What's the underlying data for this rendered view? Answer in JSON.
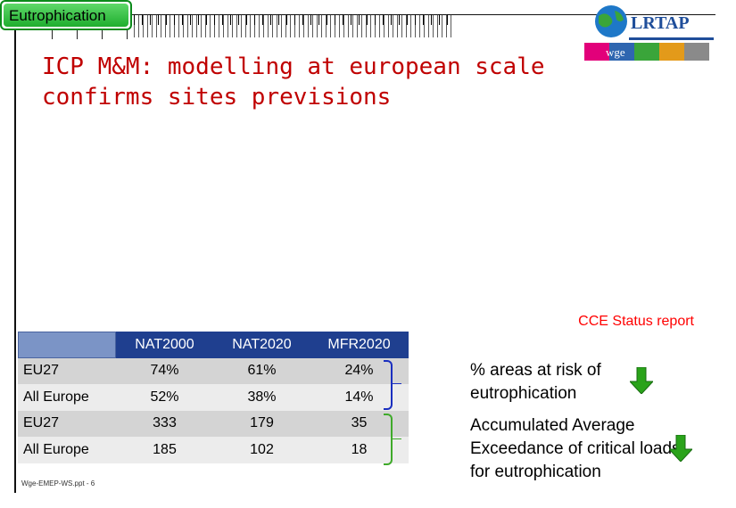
{
  "tab": {
    "label": "Eutrophication"
  },
  "title": "ICP M&M: modelling at european scale confirms sites previsions",
  "source": "CCE Status report",
  "logo": {
    "main": "LRTAP",
    "secondary": "wge"
  },
  "table": {
    "headers": [
      "",
      "NAT2000",
      "NAT2020",
      "MFR2020"
    ],
    "rows": [
      {
        "label": "EU27",
        "values": [
          "74%",
          "61%",
          "24%"
        ]
      },
      {
        "label": "All Europe",
        "values": [
          "52%",
          "38%",
          "14%"
        ]
      },
      {
        "label": "EU27",
        "values": [
          "333",
          "179",
          "35"
        ]
      },
      {
        "label": "All Europe",
        "values": [
          "185",
          "102",
          "18"
        ]
      }
    ]
  },
  "notes": {
    "areas_at_risk": "% areas at risk of eutrophication",
    "exceedance": "Accumulated Average Exceedance of critical loads for eutrophication"
  },
  "icons": {
    "trend": "down-arrow-icon"
  },
  "colors": {
    "title": "#c00000",
    "source": "#ff0000",
    "tab": "#2fbf3a",
    "header": "#1f3f8f",
    "arrow": "#2aa31a"
  },
  "footer": "Wge-EMEP-WS.ppt - 6"
}
